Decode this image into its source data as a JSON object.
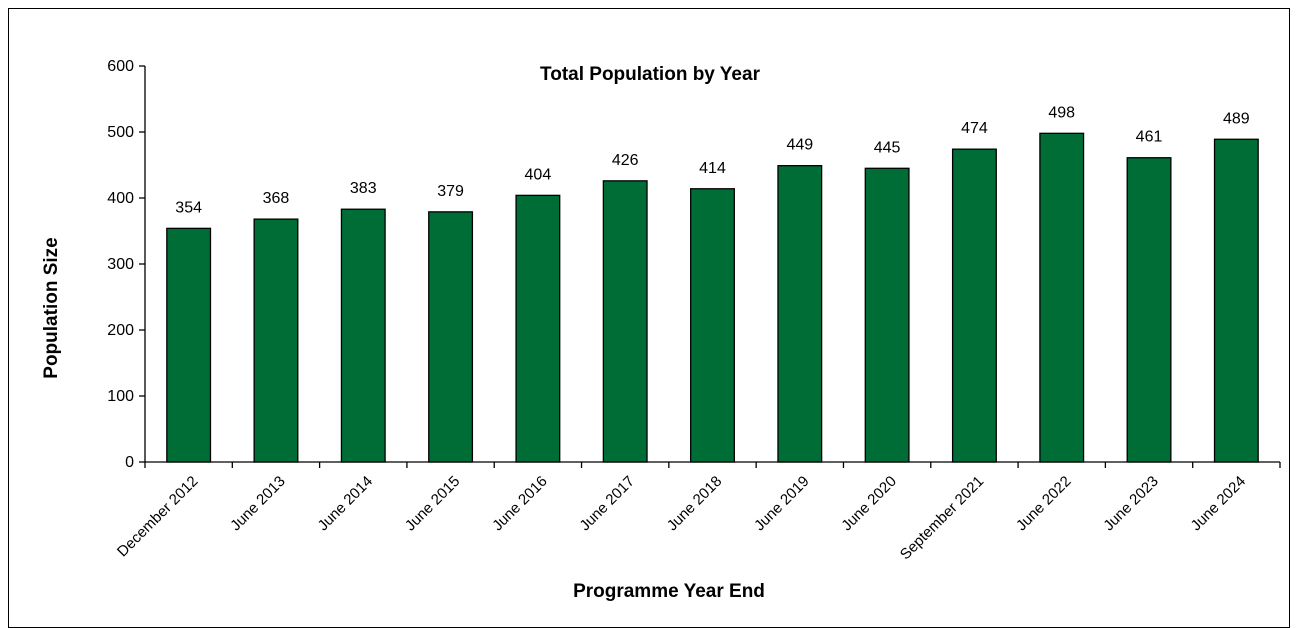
{
  "chart_data": {
    "type": "bar",
    "title": "Total Population by Year",
    "xlabel": "Programme Year End",
    "ylabel": "Population Size",
    "ylim": [
      0,
      600
    ],
    "yticks": [
      0,
      100,
      200,
      300,
      400,
      500,
      600
    ],
    "categories": [
      "December 2012",
      "June 2013",
      "June 2014",
      "June 2015",
      "June 2016",
      "June 2017",
      "June 2018",
      "June 2019",
      "June 2020",
      "September 2021",
      "June 2022",
      "June 2023",
      "June 2024"
    ],
    "values": [
      354,
      368,
      383,
      379,
      404,
      426,
      414,
      449,
      445,
      474,
      498,
      461,
      489
    ],
    "bar_color": "#006d36",
    "grid": false,
    "legend": "none"
  }
}
